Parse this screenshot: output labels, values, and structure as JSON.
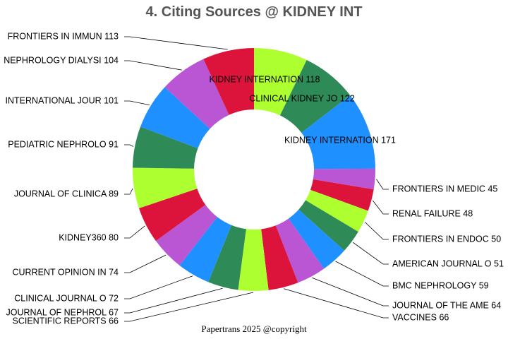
{
  "chart_data": {
    "type": "pie",
    "donut": true,
    "title": "4. Citing Sources @ KIDNEY INT",
    "start": "12 o'clock, clockwise",
    "colors": [
      "#ADFF2F",
      "#2E8B57",
      "#1E90FF",
      "#BA55D3",
      "#DC143C"
    ],
    "slices": [
      {
        "label": "KIDNEY INTERNATION",
        "value": 118
      },
      {
        "label": "CLINICAL KIDNEY JO",
        "value": 122
      },
      {
        "label": "KIDNEY INTERNATION",
        "value": 171
      },
      {
        "label": "FRONTIERS IN MEDIC",
        "value": 45
      },
      {
        "label": "RENAL FAILURE",
        "value": 48
      },
      {
        "label": "FRONTIERS IN ENDOC",
        "value": 50
      },
      {
        "label": "AMERICAN JOURNAL O",
        "value": 51
      },
      {
        "label": "BMC NEPHROLOGY",
        "value": 59
      },
      {
        "label": "JOURNAL OF THE AME",
        "value": 64
      },
      {
        "label": "VACCINES",
        "value": 66
      },
      {
        "label": "SCIENTIFIC REPORTS",
        "value": 66
      },
      {
        "label": "JOURNAL OF NEPHROL",
        "value": 67
      },
      {
        "label": "CLINICAL JOURNAL O",
        "value": 72
      },
      {
        "label": "CURRENT OPINION IN",
        "value": 74
      },
      {
        "label": "KIDNEY360",
        "value": 80
      },
      {
        "label": "JOURNAL OF CLINICA",
        "value": 89
      },
      {
        "label": "PEDIATRIC NEPHROLO",
        "value": 91
      },
      {
        "label": "INTERNATIONAL JOUR",
        "value": 101
      },
      {
        "label": "NEPHROLOGY DIALYSI",
        "value": 104
      },
      {
        "label": "FRONTIERS IN IMMUN",
        "value": 113
      }
    ]
  },
  "footer": "Papertrans 2025 @copyright"
}
